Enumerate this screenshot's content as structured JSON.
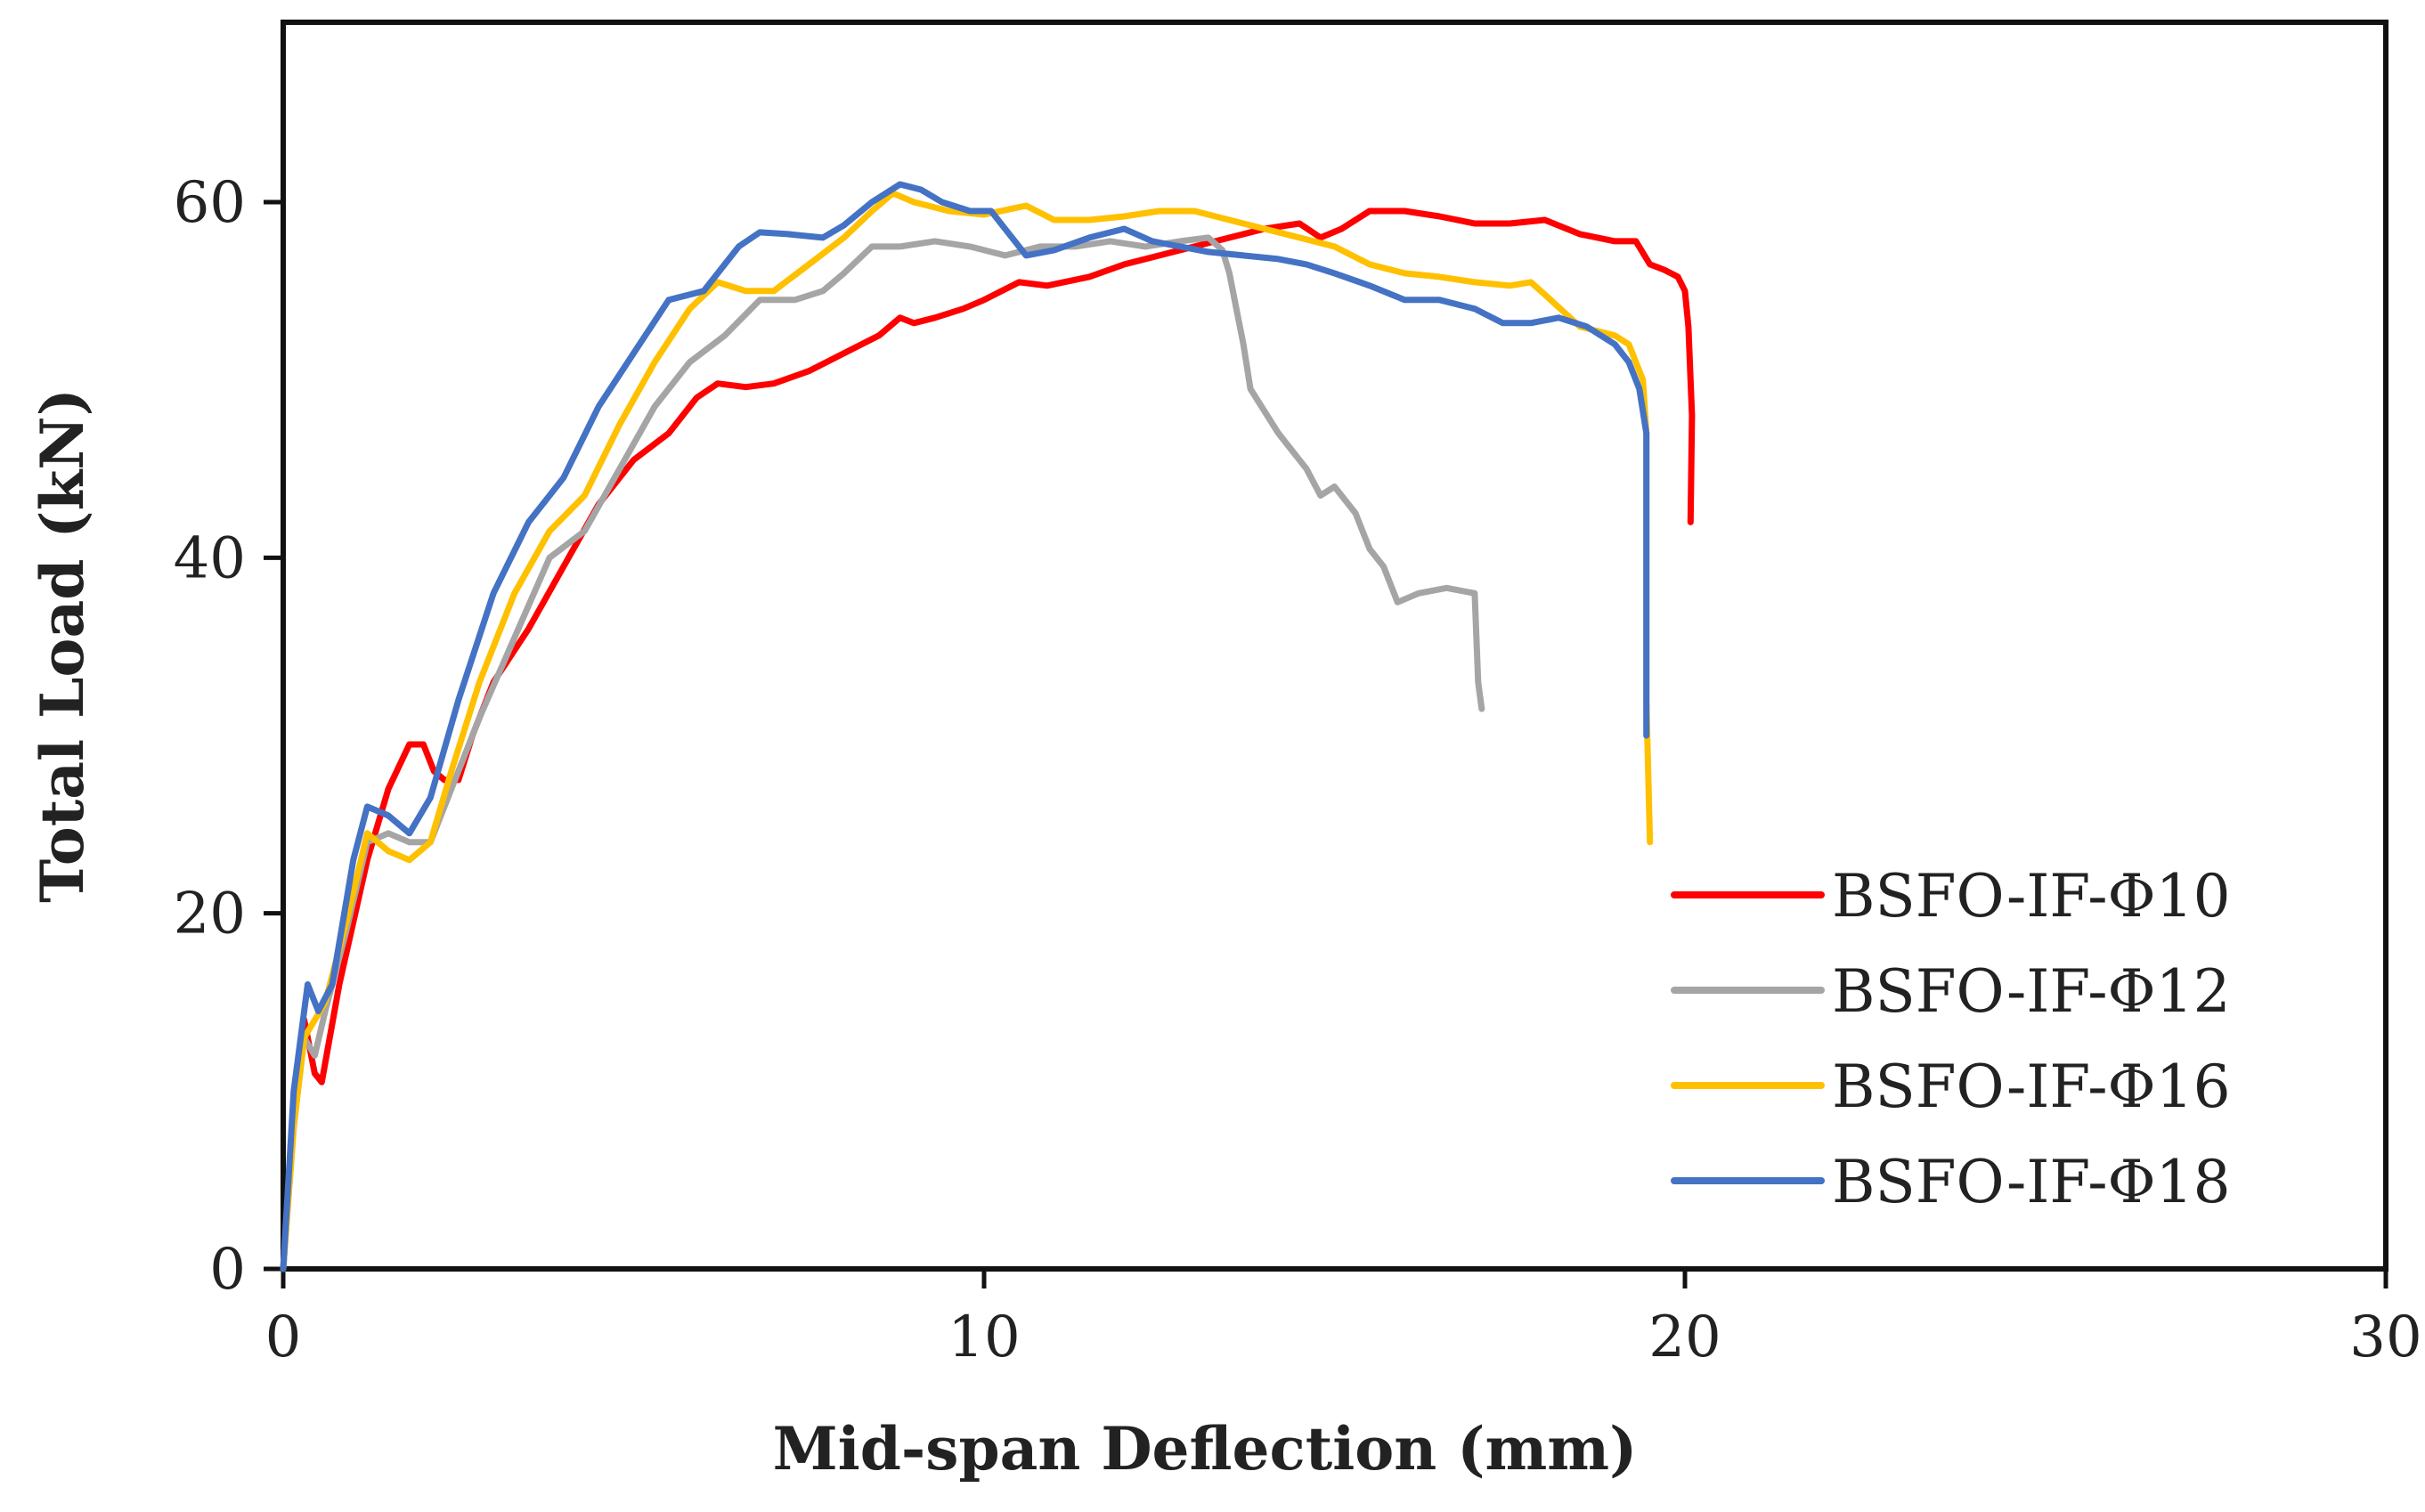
{
  "chart_data": {
    "type": "line",
    "title": "",
    "xlabel": "Mid-span Deflection (mm)",
    "ylabel": "Total Load (kN)",
    "xlim": [
      0,
      30
    ],
    "ylim": [
      0,
      70
    ],
    "xticks": [
      0,
      10,
      20,
      30
    ],
    "yticks": [
      0,
      20,
      40,
      60
    ],
    "grid": false,
    "legend_position": "bottom-right",
    "series": [
      {
        "name": "BSFO-IF-Φ10",
        "color": "#ff0000",
        "points": [
          [
            0,
            0
          ],
          [
            0.15,
            9
          ],
          [
            0.3,
            14
          ],
          [
            0.45,
            11
          ],
          [
            0.55,
            10.5
          ],
          [
            0.8,
            16
          ],
          [
            1.2,
            23
          ],
          [
            1.5,
            27
          ],
          [
            1.8,
            29.5
          ],
          [
            2,
            29.5
          ],
          [
            2.15,
            28
          ],
          [
            2.3,
            27.5
          ],
          [
            2.5,
            27.5
          ],
          [
            2.7,
            30
          ],
          [
            3,
            33
          ],
          [
            3.5,
            36
          ],
          [
            4,
            39.5
          ],
          [
            4.5,
            43
          ],
          [
            5,
            45.5
          ],
          [
            5.5,
            47
          ],
          [
            5.9,
            49
          ],
          [
            6.2,
            49.8
          ],
          [
            6.6,
            49.6
          ],
          [
            7,
            49.8
          ],
          [
            7.5,
            50.5
          ],
          [
            8,
            51.5
          ],
          [
            8.5,
            52.5
          ],
          [
            8.8,
            53.5
          ],
          [
            9,
            53.2
          ],
          [
            9.3,
            53.5
          ],
          [
            9.7,
            54
          ],
          [
            10,
            54.5
          ],
          [
            10.5,
            55.5
          ],
          [
            10.9,
            55.3
          ],
          [
            11.5,
            55.8
          ],
          [
            12,
            56.5
          ],
          [
            12.5,
            57
          ],
          [
            13,
            57.5
          ],
          [
            13.5,
            58
          ],
          [
            14,
            58.5
          ],
          [
            14.5,
            58.8
          ],
          [
            14.8,
            58
          ],
          [
            15.1,
            58.5
          ],
          [
            15.5,
            59.5
          ],
          [
            16,
            59.5
          ],
          [
            16.5,
            59.2
          ],
          [
            17,
            58.8
          ],
          [
            17.5,
            58.8
          ],
          [
            18,
            59
          ],
          [
            18.5,
            58.2
          ],
          [
            19,
            57.8
          ],
          [
            19.3,
            57.8
          ],
          [
            19.5,
            56.5
          ],
          [
            19.7,
            56.2
          ],
          [
            19.9,
            55.8
          ],
          [
            20,
            55
          ],
          [
            20.05,
            53
          ],
          [
            20.1,
            48
          ],
          [
            20.08,
            42
          ]
        ]
      },
      {
        "name": "BSFO-IF-Φ12",
        "color": "#a5a5a5",
        "points": [
          [
            0,
            0
          ],
          [
            0.15,
            8
          ],
          [
            0.3,
            13
          ],
          [
            0.45,
            12
          ],
          [
            0.6,
            14.5
          ],
          [
            0.9,
            19
          ],
          [
            1.2,
            24
          ],
          [
            1.5,
            24.5
          ],
          [
            1.8,
            24
          ],
          [
            2.1,
            24
          ],
          [
            2.4,
            27
          ],
          [
            2.8,
            31
          ],
          [
            3.3,
            35.5
          ],
          [
            3.8,
            40
          ],
          [
            4.3,
            41.5
          ],
          [
            4.8,
            45
          ],
          [
            5.3,
            48.5
          ],
          [
            5.8,
            51
          ],
          [
            6.3,
            52.5
          ],
          [
            6.8,
            54.5
          ],
          [
            7.3,
            54.5
          ],
          [
            7.7,
            55
          ],
          [
            8,
            56
          ],
          [
            8.4,
            57.5
          ],
          [
            8.8,
            57.5
          ],
          [
            9.3,
            57.8
          ],
          [
            9.8,
            57.5
          ],
          [
            10.3,
            57
          ],
          [
            10.8,
            57.5
          ],
          [
            11.3,
            57.5
          ],
          [
            11.8,
            57.8
          ],
          [
            12.3,
            57.5
          ],
          [
            12.8,
            57.8
          ],
          [
            13.2,
            58
          ],
          [
            13.4,
            57.3
          ],
          [
            13.5,
            56
          ],
          [
            13.6,
            54
          ],
          [
            13.7,
            52
          ],
          [
            13.8,
            49.5
          ],
          [
            14.2,
            47
          ],
          [
            14.6,
            45
          ],
          [
            14.8,
            43.5
          ],
          [
            15,
            44
          ],
          [
            15.3,
            42.5
          ],
          [
            15.5,
            40.5
          ],
          [
            15.7,
            39.5
          ],
          [
            15.9,
            37.5
          ],
          [
            16.2,
            38
          ],
          [
            16.6,
            38.3
          ],
          [
            17,
            38
          ],
          [
            17.05,
            33
          ],
          [
            17.1,
            31.5
          ]
        ]
      },
      {
        "name": "BSFO-IF-Φ16",
        "color": "#ffc000",
        "points": [
          [
            0,
            0
          ],
          [
            0.15,
            8
          ],
          [
            0.3,
            13
          ],
          [
            0.45,
            14
          ],
          [
            0.6,
            15
          ],
          [
            0.9,
            19.5
          ],
          [
            1.2,
            24.5
          ],
          [
            1.5,
            23.5
          ],
          [
            1.8,
            23
          ],
          [
            2.1,
            24
          ],
          [
            2.4,
            28
          ],
          [
            2.8,
            33
          ],
          [
            3.3,
            38
          ],
          [
            3.8,
            41.5
          ],
          [
            4.3,
            43.5
          ],
          [
            4.8,
            47.5
          ],
          [
            5.3,
            51
          ],
          [
            5.8,
            54
          ],
          [
            6.2,
            55.5
          ],
          [
            6.6,
            55
          ],
          [
            7,
            55
          ],
          [
            7.5,
            56.5
          ],
          [
            8,
            58
          ],
          [
            8.4,
            59.5
          ],
          [
            8.7,
            60.5
          ],
          [
            9,
            60
          ],
          [
            9.5,
            59.5
          ],
          [
            10,
            59.3
          ],
          [
            10.6,
            59.8
          ],
          [
            11,
            59
          ],
          [
            11.5,
            59
          ],
          [
            12,
            59.2
          ],
          [
            12.5,
            59.5
          ],
          [
            13,
            59.5
          ],
          [
            13.5,
            59
          ],
          [
            14,
            58.5
          ],
          [
            14.5,
            58
          ],
          [
            15,
            57.5
          ],
          [
            15.5,
            56.5
          ],
          [
            16,
            56
          ],
          [
            16.5,
            55.8
          ],
          [
            17,
            55.5
          ],
          [
            17.5,
            55.3
          ],
          [
            17.8,
            55.5
          ],
          [
            18,
            54.8
          ],
          [
            18.5,
            53
          ],
          [
            19,
            52.5
          ],
          [
            19.2,
            52
          ],
          [
            19.4,
            50
          ],
          [
            19.45,
            47
          ],
          [
            19.45,
            32
          ],
          [
            19.5,
            24
          ]
        ]
      },
      {
        "name": "BSFO-IF-Φ18",
        "color": "#4472c4",
        "points": [
          [
            0,
            0
          ],
          [
            0.15,
            10
          ],
          [
            0.35,
            16
          ],
          [
            0.5,
            14.5
          ],
          [
            0.7,
            16
          ],
          [
            1,
            23
          ],
          [
            1.2,
            26
          ],
          [
            1.5,
            25.5
          ],
          [
            1.8,
            24.5
          ],
          [
            2.1,
            26.5
          ],
          [
            2.5,
            32
          ],
          [
            3,
            38
          ],
          [
            3.5,
            42
          ],
          [
            4,
            44.5
          ],
          [
            4.5,
            48.5
          ],
          [
            5,
            51.5
          ],
          [
            5.5,
            54.5
          ],
          [
            6,
            55
          ],
          [
            6.5,
            57.5
          ],
          [
            6.8,
            58.3
          ],
          [
            7.2,
            58.2
          ],
          [
            7.7,
            58
          ],
          [
            8,
            58.7
          ],
          [
            8.4,
            60
          ],
          [
            8.8,
            61
          ],
          [
            9.1,
            60.7
          ],
          [
            9.4,
            60
          ],
          [
            9.8,
            59.5
          ],
          [
            10.1,
            59.5
          ],
          [
            10.3,
            58.5
          ],
          [
            10.6,
            57
          ],
          [
            11,
            57.3
          ],
          [
            11.5,
            58
          ],
          [
            12,
            58.5
          ],
          [
            12.4,
            57.8
          ],
          [
            12.8,
            57.5
          ],
          [
            13.2,
            57.2
          ],
          [
            13.7,
            57
          ],
          [
            14.2,
            56.8
          ],
          [
            14.6,
            56.5
          ],
          [
            15,
            56
          ],
          [
            15.5,
            55.3
          ],
          [
            16,
            54.5
          ],
          [
            16.5,
            54.5
          ],
          [
            17,
            54
          ],
          [
            17.4,
            53.2
          ],
          [
            17.8,
            53.2
          ],
          [
            18.2,
            53.5
          ],
          [
            18.6,
            53
          ],
          [
            19,
            52
          ],
          [
            19.2,
            51
          ],
          [
            19.35,
            49.5
          ],
          [
            19.45,
            47
          ],
          [
            19.45,
            35
          ],
          [
            19.45,
            30
          ]
        ]
      }
    ]
  }
}
